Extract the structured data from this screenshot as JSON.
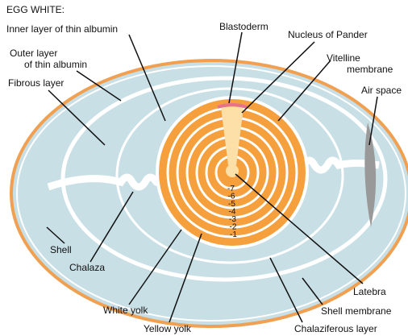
{
  "title": "EGG WHITE:",
  "labels": [
    {
      "lines": [
        "Inner layer of thin albumin"
      ]
    },
    {
      "lines": [
        "Outer layer",
        "of thin albumin"
      ]
    },
    {
      "lines": [
        "Fibrous layer"
      ]
    },
    {
      "lines": [
        "Blastoderm"
      ]
    },
    {
      "lines": [
        "Nucleus of Pander"
      ]
    },
    {
      "lines": [
        "Vitelline",
        "membrane"
      ]
    },
    {
      "lines": [
        "Air space"
      ]
    },
    {
      "lines": [
        "Shell"
      ]
    },
    {
      "lines": [
        "Chalaza"
      ]
    },
    {
      "lines": [
        "White yolk"
      ]
    },
    {
      "lines": [
        "Yellow yolk"
      ]
    },
    {
      "lines": [
        "Latebra"
      ]
    },
    {
      "lines": [
        "Shell membrane"
      ]
    },
    {
      "lines": [
        "Chalaziferous layer"
      ]
    }
  ],
  "yolk_layers": [
    "-7",
    "-6",
    "-5",
    "-4",
    "-3",
    "-2",
    "-1"
  ]
}
